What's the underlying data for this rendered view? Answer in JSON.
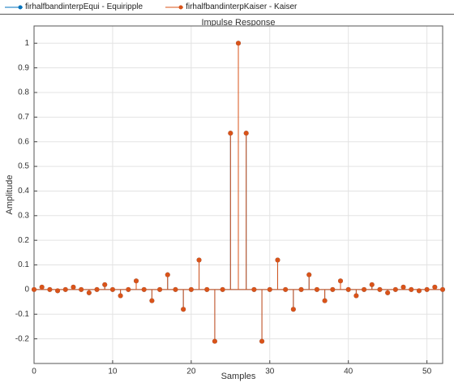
{
  "chart_data": {
    "type": "stem",
    "title": "Impulse Response",
    "xlabel": "Samples",
    "ylabel": "Amplitude",
    "x": [
      0,
      1,
      2,
      3,
      4,
      5,
      6,
      7,
      8,
      9,
      10,
      11,
      12,
      13,
      14,
      15,
      16,
      17,
      18,
      19,
      20,
      21,
      22,
      23,
      24,
      25,
      26,
      27,
      28,
      29,
      30,
      31,
      32,
      33,
      34,
      35,
      36,
      37,
      38,
      39,
      40,
      41,
      42,
      43,
      44,
      45,
      46,
      47,
      48,
      49,
      50,
      51,
      52
    ],
    "series": [
      {
        "name": "firhalfbandinterpEqui - Equiripple",
        "color": "#0072bd",
        "values": [
          0,
          0.01,
          0,
          -0.005,
          0,
          0.01,
          0,
          -0.013,
          0,
          0.02,
          0,
          -0.025,
          0,
          0.035,
          0,
          -0.045,
          0,
          0.06,
          0,
          -0.08,
          0,
          0.12,
          0,
          -0.21,
          0,
          0.635,
          1,
          0.635,
          0,
          -0.21,
          0,
          0.12,
          0,
          -0.08,
          0,
          0.06,
          0,
          -0.045,
          0,
          0.035,
          0,
          -0.025,
          0,
          0.02,
          0,
          -0.013,
          0,
          0.01,
          0,
          -0.005,
          0,
          0.01,
          0
        ]
      },
      {
        "name": "firhalfbandinterpKaiser - Kaiser",
        "color": "#d95319",
        "values": [
          0,
          0.01,
          0,
          -0.005,
          0,
          0.01,
          0,
          -0.013,
          0,
          0.02,
          0,
          -0.025,
          0,
          0.035,
          0,
          -0.045,
          0,
          0.06,
          0,
          -0.08,
          0,
          0.12,
          0,
          -0.21,
          0,
          0.635,
          1,
          0.635,
          0,
          -0.21,
          0,
          0.12,
          0,
          -0.08,
          0,
          0.06,
          0,
          -0.045,
          0,
          0.035,
          0,
          -0.025,
          0,
          0.02,
          0,
          -0.013,
          0,
          0.01,
          0,
          -0.005,
          0,
          0.01,
          0
        ]
      }
    ],
    "xlim": [
      0,
      52
    ],
    "xticks": [
      0,
      10,
      20,
      30,
      40,
      50
    ],
    "ylim": [
      -0.3,
      1.07
    ],
    "yticks": [
      -0.2,
      -0.1,
      0,
      0.1,
      0.2,
      0.3,
      0.4,
      0.5,
      0.6,
      0.7,
      0.8,
      0.9,
      1
    ],
    "grid": true
  }
}
